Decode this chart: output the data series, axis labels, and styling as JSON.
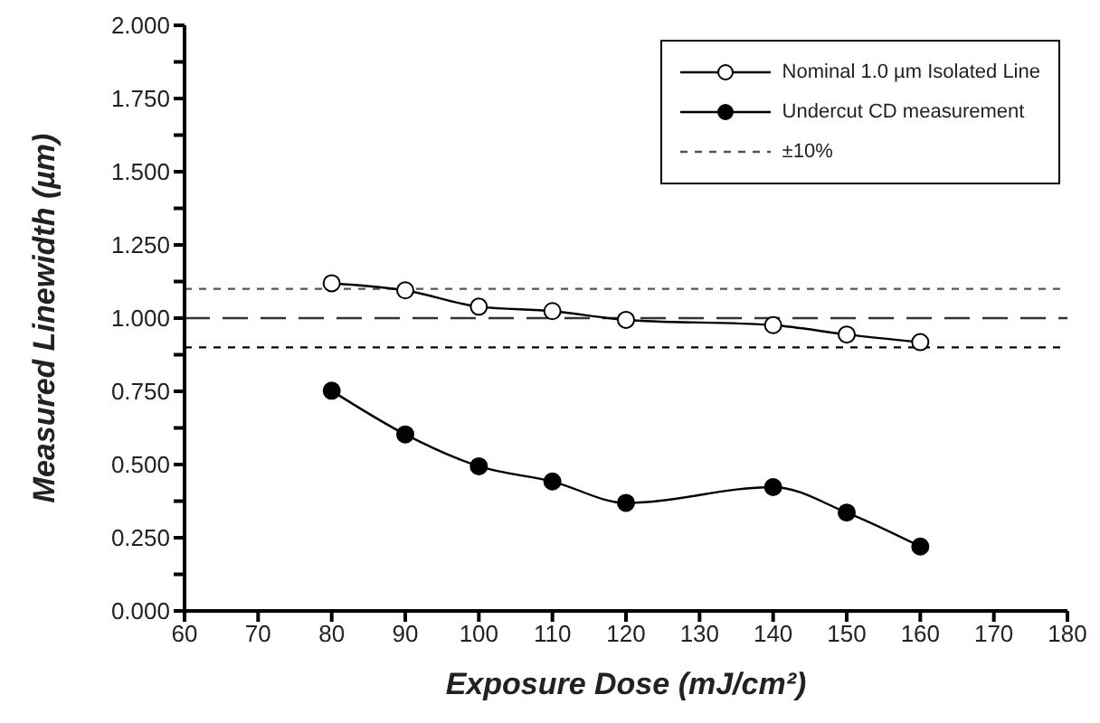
{
  "chart_data": {
    "type": "line",
    "xlabel": "Exposure Dose (mJ/cm²)",
    "ylabel": "Measured Linewidth (µm)",
    "x": [
      80,
      90,
      100,
      110,
      120,
      140,
      150,
      160
    ],
    "series": [
      {
        "name": "Nominal 1.0 µm Isolated Line",
        "color": "#000000",
        "values": [
          1.119,
          1.095,
          1.039,
          1.024,
          0.994,
          0.976,
          0.944,
          0.918
        ]
      },
      {
        "name": "Undercut CD measurement",
        "color": "#000000",
        "values": [
          0.752,
          0.603,
          0.494,
          0.442,
          0.369,
          0.423,
          0.336,
          0.22
        ]
      }
    ],
    "marker": "circle",
    "line_style": "solid",
    "legend": "top right",
    "annotations": [
      "±10%"
    ],
    "xlim": [
      60,
      180
    ],
    "xticks": [
      60,
      70,
      80,
      90,
      100,
      110,
      120,
      130,
      140,
      150,
      160,
      170,
      180
    ],
    "ylim": [
      0,
      2
    ],
    "yticks": [
      {
        "value": 0,
        "label": "0.000"
      },
      {
        "value": 0.125,
        "label": null
      },
      {
        "value": 0.25,
        "label": "0.250"
      },
      {
        "value": 0.375,
        "label": null
      },
      {
        "value": 0.5,
        "label": "0.500"
      },
      {
        "value": 0.625,
        "label": null
      },
      {
        "value": 0.75,
        "label": "0.750"
      },
      {
        "value": 0.875,
        "label": null
      },
      {
        "value": 1,
        "label": "1.000"
      },
      {
        "value": 1.125,
        "label": null
      },
      {
        "value": 1.25,
        "label": "1.250"
      },
      {
        "value": 1.375,
        "label": null
      },
      {
        "value": 1.5,
        "label": "1.500"
      },
      {
        "value": 1.625,
        "label": null
      },
      {
        "value": 1.75,
        "label": "1.750"
      },
      {
        "value": 1.875,
        "label": null
      },
      {
        "value": 2,
        "label": "2.000"
      }
    ],
    "ref_lines": [
      {
        "axis": "y",
        "value": 1.1,
        "color": "#555555",
        "line_style": "dotted"
      },
      {
        "axis": "y",
        "value": 1.0,
        "color": "#333333",
        "line_style": "dashed"
      },
      {
        "axis": "y",
        "value": 0.9,
        "color": "#000000",
        "line_style": "dotted"
      }
    ]
  }
}
